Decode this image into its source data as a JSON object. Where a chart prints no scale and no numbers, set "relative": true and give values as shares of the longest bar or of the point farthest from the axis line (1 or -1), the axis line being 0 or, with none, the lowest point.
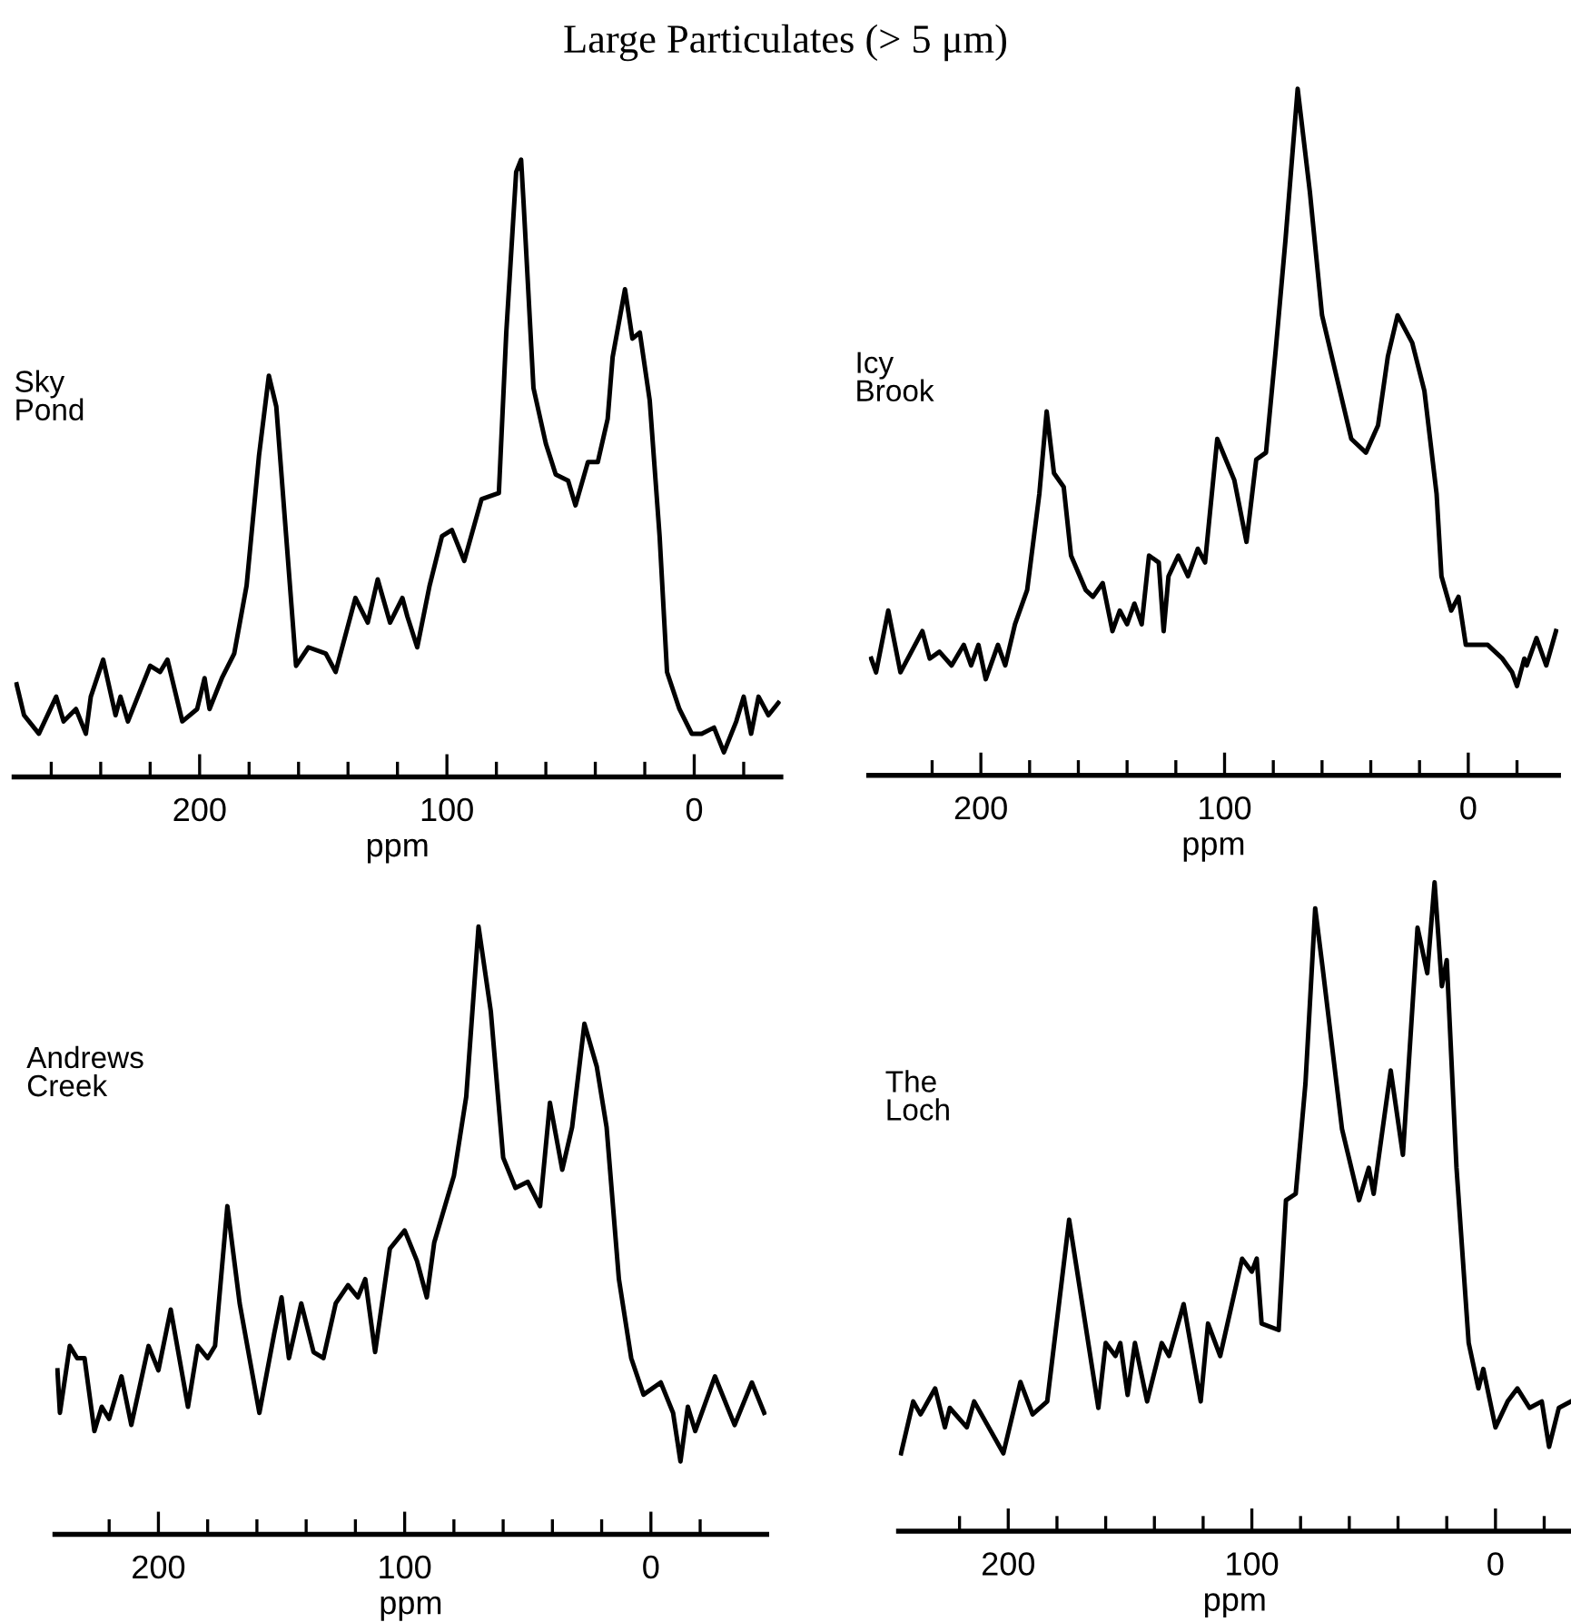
{
  "chart_data": [
    {
      "type": "line",
      "title": "Sky\nPond",
      "xlabel": "ppm",
      "relative": true,
      "annotations": [
        "Large Particulates (> 5 μm)"
      ],
      "color": "#000000",
      "xlim": [
        275,
        -35
      ],
      "xticks": [
        {
          "value": 260,
          "label": null
        },
        {
          "value": 240,
          "label": null
        },
        {
          "value": 220,
          "label": null
        },
        200,
        {
          "value": 180,
          "label": null
        },
        {
          "value": 160,
          "label": null
        },
        {
          "value": 140,
          "label": null
        },
        {
          "value": 120,
          "label": null
        },
        100,
        {
          "value": 80,
          "label": null
        },
        {
          "value": 60,
          "label": null
        },
        {
          "value": 40,
          "label": null
        },
        {
          "value": 20,
          "label": null
        },
        0,
        {
          "value": -20,
          "label": null
        }
      ],
      "x": [
        274,
        271,
        265,
        258,
        255,
        250,
        246,
        244,
        239,
        234,
        232,
        229,
        225,
        220,
        216,
        213,
        207,
        201,
        198,
        196,
        191,
        186,
        181,
        176,
        172,
        169,
        165,
        161,
        156,
        149,
        145,
        137,
        132,
        128,
        123,
        118,
        116,
        112,
        107,
        102,
        98,
        93,
        86,
        79,
        76,
        72,
        70,
        69,
        65,
        60,
        56,
        51,
        48,
        43,
        39,
        35,
        33,
        28,
        25,
        22,
        18,
        14,
        11,
        6,
        1,
        -3,
        -8,
        -12,
        -17,
        -20,
        -23,
        -26,
        -30,
        -34
      ],
      "values": [
        0.15,
        0.1,
        0.07,
        0.13,
        0.09,
        0.11,
        0.07,
        0.13,
        0.19,
        0.1,
        0.13,
        0.09,
        0.13,
        0.18,
        0.17,
        0.19,
        0.09,
        0.11,
        0.16,
        0.11,
        0.16,
        0.2,
        0.31,
        0.52,
        0.65,
        0.6,
        0.39,
        0.18,
        0.21,
        0.2,
        0.17,
        0.29,
        0.25,
        0.32,
        0.25,
        0.29,
        0.26,
        0.21,
        0.31,
        0.39,
        0.4,
        0.35,
        0.45,
        0.46,
        0.72,
        0.98,
        1,
        0.93,
        0.63,
        0.54,
        0.49,
        0.48,
        0.44,
        0.51,
        0.51,
        0.58,
        0.68,
        0.79,
        0.71,
        0.72,
        0.61,
        0.39,
        0.17,
        0.11,
        0.07,
        0.07,
        0.08,
        0.04,
        0.09,
        0.13,
        0.07,
        0.13,
        0.1,
        0.12
      ]
    },
    {
      "type": "line",
      "title": "Icy\nBrook",
      "xlabel": "ppm",
      "relative": true,
      "color": "#000000",
      "xlim": [
        246,
        -37
      ],
      "xticks": [
        {
          "value": 220,
          "label": null
        },
        200,
        {
          "value": 180,
          "label": null
        },
        {
          "value": 160,
          "label": null
        },
        {
          "value": 140,
          "label": null
        },
        {
          "value": 120,
          "label": null
        },
        100,
        {
          "value": 80,
          "label": null
        },
        {
          "value": 60,
          "label": null
        },
        {
          "value": 40,
          "label": null
        },
        {
          "value": 20,
          "label": null
        },
        0,
        {
          "value": -20,
          "label": null
        }
      ],
      "x": [
        245,
        243,
        238,
        233,
        224,
        221,
        217,
        212,
        207,
        204,
        201,
        198,
        193,
        190,
        186,
        181,
        176,
        173,
        170,
        166,
        163,
        157,
        154,
        150,
        146,
        143,
        140,
        137,
        134,
        131,
        127,
        125,
        123,
        119,
        115,
        111,
        108,
        103,
        96,
        91,
        87,
        83,
        79,
        75,
        70,
        65,
        60,
        54,
        48,
        42,
        37,
        33,
        29,
        23,
        18,
        13,
        11,
        7,
        4,
        1,
        -8,
        -14,
        -18,
        -20,
        -23,
        -24,
        -28,
        -32,
        -36
      ],
      "values": [
        0.17,
        0.15,
        0.24,
        0.15,
        0.21,
        0.17,
        0.18,
        0.16,
        0.19,
        0.16,
        0.19,
        0.14,
        0.19,
        0.16,
        0.22,
        0.27,
        0.41,
        0.53,
        0.44,
        0.42,
        0.32,
        0.27,
        0.26,
        0.28,
        0.21,
        0.24,
        0.22,
        0.25,
        0.22,
        0.32,
        0.31,
        0.21,
        0.29,
        0.32,
        0.29,
        0.33,
        0.31,
        0.49,
        0.43,
        0.34,
        0.46,
        0.47,
        0.62,
        0.78,
        1,
        0.85,
        0.67,
        0.58,
        0.49,
        0.47,
        0.51,
        0.61,
        0.67,
        0.63,
        0.56,
        0.41,
        0.29,
        0.24,
        0.26,
        0.19,
        0.19,
        0.17,
        0.15,
        0.13,
        0.17,
        0.16,
        0.2,
        0.16,
        0.21
      ]
    },
    {
      "type": "line",
      "title": "Andrews\nCreek",
      "xlabel": "ppm",
      "relative": true,
      "color": "#000000",
      "xlim": [
        242,
        -47
      ],
      "xticks": [
        {
          "value": 220,
          "label": null
        },
        200,
        {
          "value": 180,
          "label": null
        },
        {
          "value": 160,
          "label": null
        },
        {
          "value": 140,
          "label": null
        },
        {
          "value": 120,
          "label": null
        },
        100,
        {
          "value": 80,
          "label": null
        },
        {
          "value": 60,
          "label": null
        },
        {
          "value": 40,
          "label": null
        },
        {
          "value": 20,
          "label": null
        },
        0,
        {
          "value": -20,
          "label": null
        }
      ],
      "x": [
        241,
        240,
        236,
        233,
        230,
        226,
        223,
        220,
        215,
        211,
        204,
        200,
        195,
        188,
        184,
        180,
        177,
        172,
        167,
        159,
        153,
        150,
        147,
        142,
        137,
        133,
        128,
        123,
        119,
        116,
        112,
        106,
        100,
        95,
        91,
        88,
        80,
        75,
        70,
        65,
        60,
        55,
        50,
        45,
        41,
        36,
        32,
        27,
        22,
        18,
        13,
        8,
        3,
        -4,
        -9,
        -12,
        -15,
        -18,
        -26,
        -34,
        -41,
        -46
      ],
      "values": [
        0.27,
        0.2,
        0.31,
        0.29,
        0.29,
        0.17,
        0.21,
        0.19,
        0.26,
        0.18,
        0.31,
        0.27,
        0.37,
        0.21,
        0.31,
        0.29,
        0.31,
        0.54,
        0.38,
        0.2,
        0.33,
        0.39,
        0.29,
        0.38,
        0.3,
        0.29,
        0.38,
        0.41,
        0.39,
        0.42,
        0.3,
        0.47,
        0.5,
        0.45,
        0.39,
        0.48,
        0.59,
        0.72,
        1,
        0.86,
        0.62,
        0.57,
        0.58,
        0.54,
        0.71,
        0.6,
        0.67,
        0.84,
        0.77,
        0.67,
        0.42,
        0.29,
        0.23,
        0.25,
        0.2,
        0.12,
        0.21,
        0.17,
        0.26,
        0.18,
        0.25,
        0.2
      ]
    },
    {
      "type": "line",
      "title": "The\nLoch",
      "xlabel": "ppm",
      "relative": true,
      "color": "#000000",
      "xlim": [
        245,
        -31
      ],
      "xticks": [
        {
          "value": 220,
          "label": null
        },
        200,
        {
          "value": 180,
          "label": null
        },
        {
          "value": 160,
          "label": null
        },
        {
          "value": 140,
          "label": null
        },
        {
          "value": 120,
          "label": null
        },
        100,
        {
          "value": 80,
          "label": null
        },
        {
          "value": 60,
          "label": null
        },
        {
          "value": 40,
          "label": null
        },
        {
          "value": 20,
          "label": null
        },
        0,
        {
          "value": -20,
          "label": null
        }
      ],
      "x": [
        244,
        239,
        236,
        230,
        226,
        224,
        217,
        214,
        202,
        195,
        190,
        184,
        175,
        163,
        160,
        156,
        154,
        151,
        148,
        143,
        137,
        134,
        128,
        121,
        118,
        113,
        104,
        100,
        98,
        96,
        89,
        86,
        82,
        78,
        74,
        71,
        63,
        56,
        52,
        50,
        43,
        38,
        32,
        28,
        25,
        22,
        20,
        16,
        11,
        7,
        5,
        0,
        -5,
        -9,
        -14,
        -19,
        -22,
        -26,
        -31
      ],
      "values": [
        0.12,
        0.2,
        0.18,
        0.22,
        0.16,
        0.19,
        0.16,
        0.2,
        0.12,
        0.23,
        0.18,
        0.2,
        0.48,
        0.19,
        0.29,
        0.27,
        0.29,
        0.21,
        0.29,
        0.2,
        0.29,
        0.27,
        0.35,
        0.2,
        0.32,
        0.27,
        0.42,
        0.4,
        0.42,
        0.32,
        0.31,
        0.51,
        0.52,
        0.69,
        0.96,
        0.87,
        0.62,
        0.51,
        0.56,
        0.52,
        0.71,
        0.58,
        0.93,
        0.86,
        1,
        0.84,
        0.88,
        0.56,
        0.29,
        0.22,
        0.25,
        0.16,
        0.2,
        0.22,
        0.19,
        0.2,
        0.13,
        0.19,
        0.2
      ]
    }
  ]
}
